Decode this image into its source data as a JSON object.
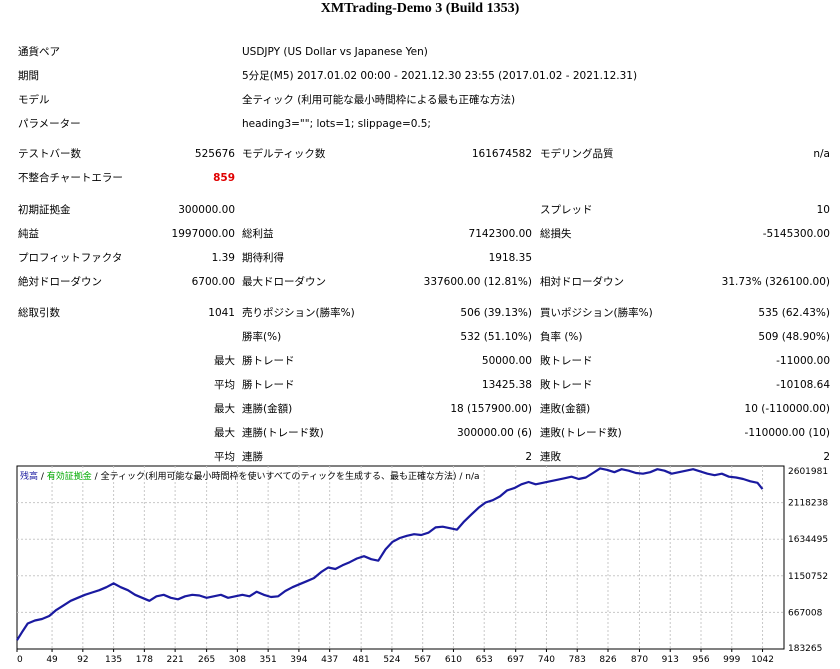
{
  "title": "XMTrading-Demo 3 (Build 1353)",
  "info": {
    "pair_label": "通貨ペア",
    "pair_value": "USDJPY (US Dollar vs Japanese Yen)",
    "period_label": "期間",
    "period_value": "5分足(M5) 2017.01.02 00:00 - 2021.12.30 23:55 (2017.01.02 - 2021.12.31)",
    "model_label": "モデル",
    "model_value": "全ティック (利用可能な最小時間枠による最も正確な方法)",
    "params_label": "パラメーター",
    "params_value": "heading3=\"\"; lots=1; slippage=0.5;"
  },
  "stats": {
    "bars_label": "テストバー数",
    "bars_value": "525676",
    "ticks_label": "モデルティック数",
    "ticks_value": "161674582",
    "quality_label": "モデリング品質",
    "quality_value": "n/a",
    "mismatch_label": "不整合チャートエラー",
    "mismatch_value": "859",
    "deposit_label": "初期証拠金",
    "deposit_value": "300000.00",
    "spread_label": "スプレッド",
    "spread_value": "10",
    "net_label": "純益",
    "net_value": "1997000.00",
    "gross_profit_label": "総利益",
    "gross_profit_value": "7142300.00",
    "gross_loss_label": "総損失",
    "gross_loss_value": "-5145300.00",
    "pf_label": "プロフィットファクタ",
    "pf_value": "1.39",
    "expected_label": "期待利得",
    "expected_value": "1918.35",
    "abs_dd_label": "絶対ドローダウン",
    "abs_dd_value": "6700.00",
    "max_dd_label": "最大ドローダウン",
    "max_dd_value": "337600.00 (12.81%)",
    "rel_dd_label": "相対ドローダウン",
    "rel_dd_value": "31.73% (326100.00)",
    "trades_label": "総取引数",
    "trades_value": "1041",
    "short_label": "売りポジション(勝率%)",
    "short_value": "506 (39.13%)",
    "long_label": "買いポジション(勝率%)",
    "long_value": "535 (62.43%)",
    "winrate_label": "勝率(%)",
    "winrate_value": "532 (51.10%)",
    "lossrate_label": "負率 (%)",
    "lossrate_value": "509 (48.90%)",
    "max1": "最大",
    "largest_win_label": "勝トレード",
    "largest_win_value": "50000.00",
    "largest_loss_label": "敗トレード",
    "largest_loss_value": "-11000.00",
    "avg1": "平均",
    "avg_win_label": "勝トレード",
    "avg_win_value": "13425.38",
    "avg_loss_label": "敗トレード",
    "avg_loss_value": "-10108.64",
    "max2": "最大",
    "consec_win_money_label": "連勝(金額)",
    "consec_win_money_value": "18 (157900.00)",
    "consec_loss_money_label": "連敗(金額)",
    "consec_loss_money_value": "10 (-110000.00)",
    "max3": "最大",
    "consec_profit_label": "連勝(トレード数)",
    "consec_profit_value": "300000.00 (6)",
    "consec_loss_label": "連敗(トレード数)",
    "consec_loss_value": "-110000.00 (10)",
    "avg2": "平均",
    "avg_consec_win_label": "連勝",
    "avg_consec_win_value": "2",
    "avg_consec_loss_label": "連敗",
    "avg_consec_loss_value": "2"
  },
  "chart_data": {
    "type": "line",
    "legend_balance": "残高",
    "legend_equity": "有効証拠金",
    "legend_model": "全ティック(利用可能な最小時間枠を使いすべてのティックを生成する、最も正確な方法)",
    "legend_quality": "n/a",
    "x_ticks": [
      "0",
      "49",
      "92",
      "135",
      "178",
      "221",
      "265",
      "308",
      "351",
      "394",
      "437",
      "481",
      "524",
      "567",
      "610",
      "653",
      "697",
      "740",
      "783",
      "826",
      "870",
      "913",
      "956",
      "999",
      "1042"
    ],
    "y_ticks": [
      "2601981",
      "2118238",
      "1634495",
      "1150752",
      "667008",
      "183265"
    ],
    "ylim": [
      183265,
      2601981
    ],
    "xlim": [
      0,
      1072
    ],
    "colors": {
      "balance": "#1a1aa0",
      "equity": "#00aa00",
      "grid": "#c8c8c8"
    },
    "series": [
      {
        "name": "残高",
        "x": [
          0,
          8,
          15,
          25,
          35,
          45,
          55,
          65,
          75,
          85,
          95,
          105,
          115,
          125,
          135,
          145,
          155,
          165,
          175,
          185,
          195,
          205,
          215,
          225,
          235,
          245,
          255,
          265,
          275,
          285,
          295,
          305,
          315,
          325,
          335,
          345,
          355,
          365,
          375,
          385,
          395,
          405,
          415,
          425,
          435,
          445,
          455,
          465,
          475,
          485,
          495,
          505,
          515,
          525,
          535,
          545,
          555,
          565,
          575,
          585,
          595,
          605,
          615,
          625,
          635,
          645,
          655,
          665,
          675,
          685,
          695,
          705,
          715,
          725,
          735,
          745,
          755,
          765,
          775,
          785,
          795,
          805,
          815,
          825,
          835,
          845,
          855,
          865,
          875,
          885,
          895,
          905,
          915,
          925,
          935,
          945,
          955,
          965,
          975,
          985,
          995,
          1005,
          1015,
          1025,
          1035,
          1042
        ],
        "y": [
          300000,
          420000,
          520000,
          560000,
          580000,
          620000,
          700000,
          760000,
          820000,
          860000,
          900000,
          930000,
          960000,
          1000000,
          1050000,
          1000000,
          960000,
          900000,
          860000,
          820000,
          880000,
          900000,
          860000,
          840000,
          880000,
          900000,
          890000,
          860000,
          880000,
          900000,
          860000,
          880000,
          900000,
          880000,
          940000,
          900000,
          870000,
          880000,
          950000,
          1000000,
          1040000,
          1080000,
          1120000,
          1200000,
          1260000,
          1240000,
          1290000,
          1330000,
          1380000,
          1410000,
          1370000,
          1350000,
          1500000,
          1600000,
          1650000,
          1680000,
          1700000,
          1690000,
          1720000,
          1790000,
          1800000,
          1780000,
          1760000,
          1870000,
          1960000,
          2050000,
          2120000,
          2150000,
          2200000,
          2280000,
          2310000,
          2360000,
          2390000,
          2360000,
          2380000,
          2400000,
          2420000,
          2440000,
          2460000,
          2430000,
          2450000,
          2510000,
          2570000,
          2550000,
          2520000,
          2560000,
          2540000,
          2510000,
          2500000,
          2520000,
          2560000,
          2540000,
          2500000,
          2520000,
          2540000,
          2560000,
          2530000,
          2500000,
          2480000,
          2500000,
          2460000,
          2450000,
          2430000,
          2400000,
          2380000,
          2297000
        ]
      }
    ]
  }
}
